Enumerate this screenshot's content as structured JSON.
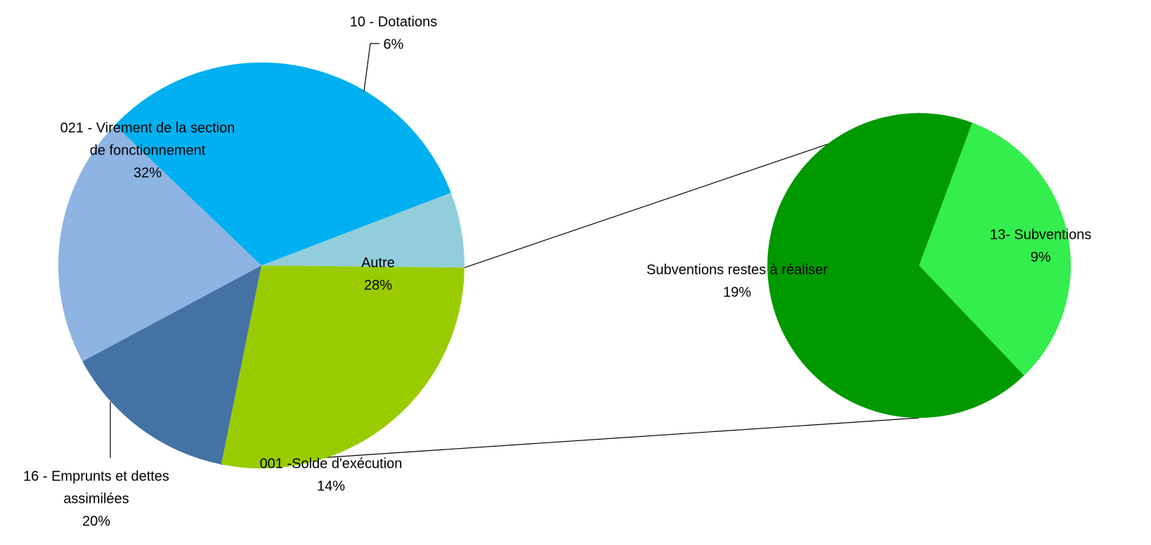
{
  "chart_data": {
    "type": "pie",
    "subtype": "pie-of-pie",
    "title": "",
    "legend": "none",
    "main_pie": {
      "slices": [
        {
          "label_lines": [
            "10 - Dotations"
          ],
          "percent_label": "6%",
          "value": 6,
          "color": "#92CDDC"
        },
        {
          "label_lines": [
            "Autre"
          ],
          "percent_label": "28%",
          "value": 28,
          "color": "#99CC00"
        },
        {
          "label_lines": [
            "001 -Solde d'exécution"
          ],
          "percent_label": "14%",
          "value": 14,
          "color": "#4472A4"
        },
        {
          "label_lines": [
            "16 - Emprunts et dettes",
            "assimilées"
          ],
          "percent_label": "20%",
          "value": 20,
          "color": "#8DB4E2"
        },
        {
          "label_lines": [
            "021 - Virement de la section",
            "de fonctionnement"
          ],
          "percent_label": "32%",
          "value": 32,
          "color": "#00B0F0"
        }
      ]
    },
    "secondary_pie": {
      "source_slice": "Autre",
      "slices": [
        {
          "label_lines": [
            "13- Subventions"
          ],
          "percent_label": "9%",
          "value": 9,
          "color": "#33EE4C"
        },
        {
          "label_lines": [
            "Subventions restes à réaliser"
          ],
          "percent_label": "19%",
          "value": 19,
          "color": "#009900"
        }
      ]
    }
  }
}
